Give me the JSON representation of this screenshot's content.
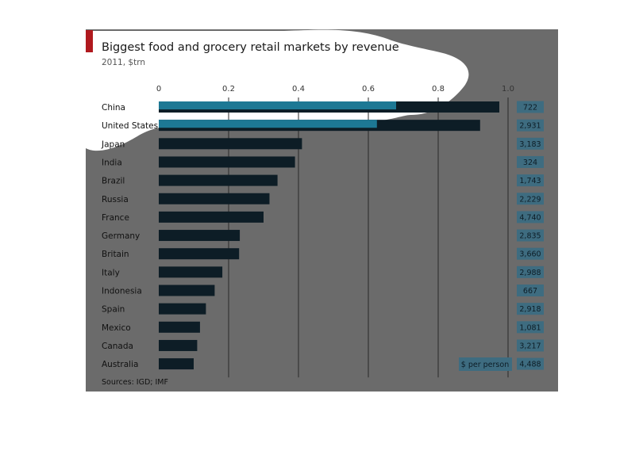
{
  "chart_data": {
    "type": "bar",
    "orientation": "horizontal",
    "title": "Biggest food and grocery retail markets by revenue",
    "subtitle": "2011, $trn",
    "xlim": [
      0,
      1.0
    ],
    "xticks": [
      "0",
      "0.2",
      "0.4",
      "0.6",
      "0.8",
      "1.0"
    ],
    "grid": true,
    "categories": [
      "China",
      "United States",
      "Japan",
      "India",
      "Brazil",
      "Russia",
      "France",
      "Germany",
      "Britain",
      "Italy",
      "Indonesia",
      "Spain",
      "Mexico",
      "Canada",
      "Australia"
    ],
    "values": [
      0.975,
      0.92,
      0.41,
      0.39,
      0.34,
      0.317,
      0.3,
      0.232,
      0.23,
      0.182,
      0.16,
      0.135,
      0.118,
      0.11,
      0.1
    ],
    "per_person_label": "$ per person",
    "per_person": [
      "722",
      "2,931",
      "3,183",
      "324",
      "1,743",
      "2,229",
      "4,740",
      "2,835",
      "3,660",
      "2,988",
      "667",
      "2,918",
      "1,081",
      "3,217",
      "4,488"
    ],
    "source": "Sources: IGD; IMF"
  },
  "colors": {
    "background": "#6b6b6b",
    "bar": "#0d1d26",
    "bar_highlight": "#1d7894",
    "gridline": "#2a2a2a",
    "value_box": "#3e6c80",
    "accent_red": "#b0191e",
    "highlight_shape": "#ffffff"
  }
}
